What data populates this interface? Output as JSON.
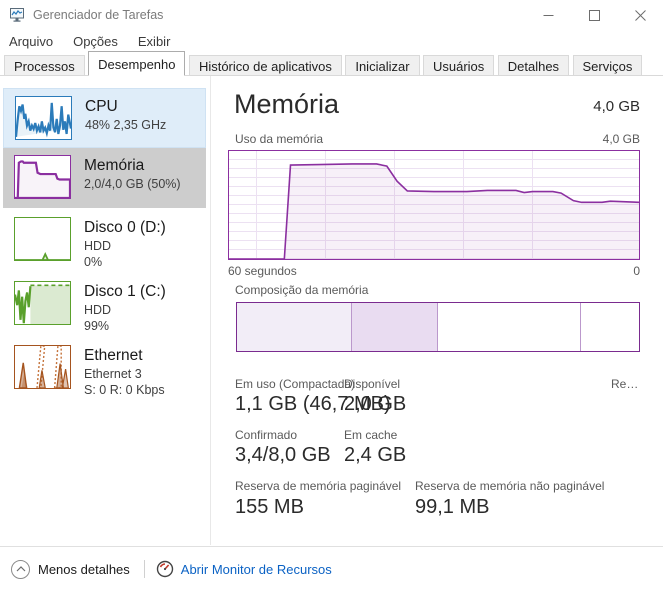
{
  "window": {
    "title": "Gerenciador de Tarefas",
    "controls": {
      "minimize": "minimize",
      "maximize": "maximize",
      "close": "close"
    }
  },
  "menu": {
    "file": "Arquivo",
    "options": "Opções",
    "view": "Exibir"
  },
  "tabs": [
    {
      "label": "Processos",
      "active": false
    },
    {
      "label": "Desempenho",
      "active": true
    },
    {
      "label": "Histórico de aplicativos",
      "active": false
    },
    {
      "label": "Inicializar",
      "active": false
    },
    {
      "label": "Usuários",
      "active": false
    },
    {
      "label": "Detalhes",
      "active": false
    },
    {
      "label": "Serviços",
      "active": false
    }
  ],
  "sidebar": {
    "items": [
      {
        "id": "cpu",
        "label": "CPU",
        "line2": "48% 2,35 GHz",
        "selected": true
      },
      {
        "id": "memory",
        "label": "Memória",
        "line2": "2,0/4,0 GB (50%)",
        "selected": false
      },
      {
        "id": "disk0",
        "label": "Disco 0 (D:)",
        "line2": "HDD",
        "line3": "0%",
        "selected": false
      },
      {
        "id": "disk1",
        "label": "Disco 1 (C:)",
        "line2": "HDD",
        "line3": "99%",
        "selected": false
      },
      {
        "id": "ethernet",
        "label": "Ethernet",
        "line2": "Ethernet 3",
        "line3": "S: 0 R: 0 Kbps",
        "selected": false
      }
    ]
  },
  "main": {
    "title": "Memória",
    "total": "4,0 GB",
    "usage_graph": {
      "label": "Uso da memória",
      "max_label": "4,0 GB",
      "x_left": "60 segundos",
      "x_right": "0"
    },
    "composition": {
      "label": "Composição da memória",
      "segments": [
        {
          "name": "em-uso",
          "width_pct": 28.5,
          "fill": "#f2edf7",
          "divider": true
        },
        {
          "name": "modificada",
          "width_pct": 21.5,
          "fill": "#e9dcf1",
          "divider": true
        },
        {
          "name": "em-espera",
          "width_pct": 35.5,
          "fill": "#ffffff",
          "divider": true
        },
        {
          "name": "livre",
          "width_pct": 14.5,
          "fill": "#ffffff",
          "divider": false
        }
      ],
      "divider_color": "#bb98cc"
    },
    "stats": [
      {
        "label": "Em uso (Compactada)",
        "value": "1,1 GB (46,7 MB)"
      },
      {
        "label": "Disponível",
        "value": "2,0 GB"
      },
      {
        "label": "Re…",
        "value": ""
      },
      {
        "label": "Confirmado",
        "value": "3,4/8,0 GB"
      },
      {
        "label": "Em cache",
        "value": "2,4 GB"
      },
      {
        "label": "Reserva de memória paginável",
        "value": "155 MB"
      },
      {
        "label": "Reserva de memória não paginável",
        "value": "99,1 MB"
      }
    ]
  },
  "footer": {
    "less_details": "Menos detalhes",
    "open_resource_monitor": "Abrir Monitor de Recursos"
  },
  "colors": {
    "memory_accent": "#8b2fa0",
    "memory_fill": "rgba(139,47,160,0.07)",
    "cpu_accent": "#2b7bba",
    "disk_accent": "#5aa02c",
    "ethernet_accent": "#a5541f",
    "link_blue": "#0b62c4",
    "selected_item_bg": "#dfedf9",
    "hover_item_bg": "#cdcdcd"
  },
  "chart_data": {
    "type": "area",
    "title": "Uso da memória",
    "ylabel": "GB",
    "ylim_gb": [
      0,
      4.0
    ],
    "x_axis": {
      "left": "60 segundos",
      "right": "0"
    },
    "points_pct": [
      [
        0,
        0
      ],
      [
        13.5,
        0
      ],
      [
        15,
        87
      ],
      [
        22,
        87.5
      ],
      [
        30,
        88
      ],
      [
        36,
        88
      ],
      [
        38.5,
        86
      ],
      [
        41,
        72
      ],
      [
        43.5,
        63
      ],
      [
        50,
        62.5
      ],
      [
        58,
        62.5
      ],
      [
        63,
        63.5
      ],
      [
        70,
        63.5
      ],
      [
        72,
        61.5
      ],
      [
        74,
        62.5
      ],
      [
        79,
        62.5
      ],
      [
        81,
        61
      ],
      [
        84,
        54
      ],
      [
        86,
        52.5
      ],
      [
        91,
        52.5
      ],
      [
        93,
        53.5
      ],
      [
        100,
        52.5
      ]
    ],
    "current_usage": "2,0/4,0 GB (50%)"
  }
}
